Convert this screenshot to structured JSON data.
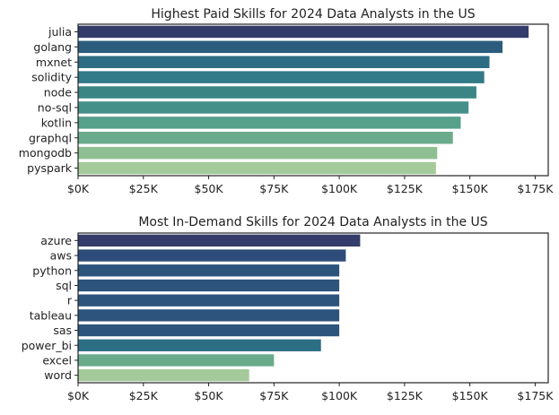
{
  "chart_data": [
    {
      "type": "bar",
      "orientation": "horizontal",
      "title": "Highest Paid Skills for 2024 Data Analysts in the US",
      "xlabel": "",
      "ylabel": "",
      "categories": [
        "julia",
        "golang",
        "mxnet",
        "solidity",
        "node",
        "no-sql",
        "kotlin",
        "graphql",
        "mongodb",
        "pyspark"
      ],
      "values": [
        172500,
        162500,
        157500,
        155500,
        152500,
        149500,
        146500,
        143500,
        137500,
        137000
      ],
      "colors": [
        "#333c6a",
        "#2b5c7d",
        "#2d6c82",
        "#327a87",
        "#3b8685",
        "#46908a",
        "#57a08a",
        "#6aab8c",
        "#8ebf92",
        "#a4c99a"
      ],
      "xlim": [
        0,
        180000
      ],
      "xticks": [
        0,
        25000,
        50000,
        75000,
        100000,
        125000,
        150000,
        175000
      ],
      "xtick_labels": [
        "$0K",
        "$25K",
        "$50K",
        "$75K",
        "$100K",
        "$125K",
        "$150K",
        "$175K"
      ],
      "grid": false,
      "legend": "none"
    },
    {
      "type": "bar",
      "orientation": "horizontal",
      "title": "Most In-Demand Skills for 2024 Data Analysts in the US",
      "xlabel": "",
      "ylabel": "",
      "categories": [
        "azure",
        "aws",
        "python",
        "sql",
        "r",
        "tableau",
        "sas",
        "power_bi",
        "excel",
        "word"
      ],
      "values": [
        108000,
        102500,
        100000,
        100000,
        100000,
        100000,
        100000,
        93000,
        75000,
        65500
      ],
      "colors": [
        "#333c6a",
        "#2e4c79",
        "#2d547c",
        "#2d547c",
        "#2d547c",
        "#2d547c",
        "#2d547c",
        "#2c6e83",
        "#6aab8c",
        "#a4c99a"
      ],
      "xlim": [
        0,
        180000
      ],
      "xticks": [
        0,
        25000,
        50000,
        75000,
        100000,
        125000,
        150000,
        175000
      ],
      "xtick_labels": [
        "$0K",
        "$25K",
        "$50K",
        "$75K",
        "$100K",
        "$125K",
        "$150K",
        "$175K"
      ],
      "grid": false,
      "legend": "none"
    }
  ]
}
